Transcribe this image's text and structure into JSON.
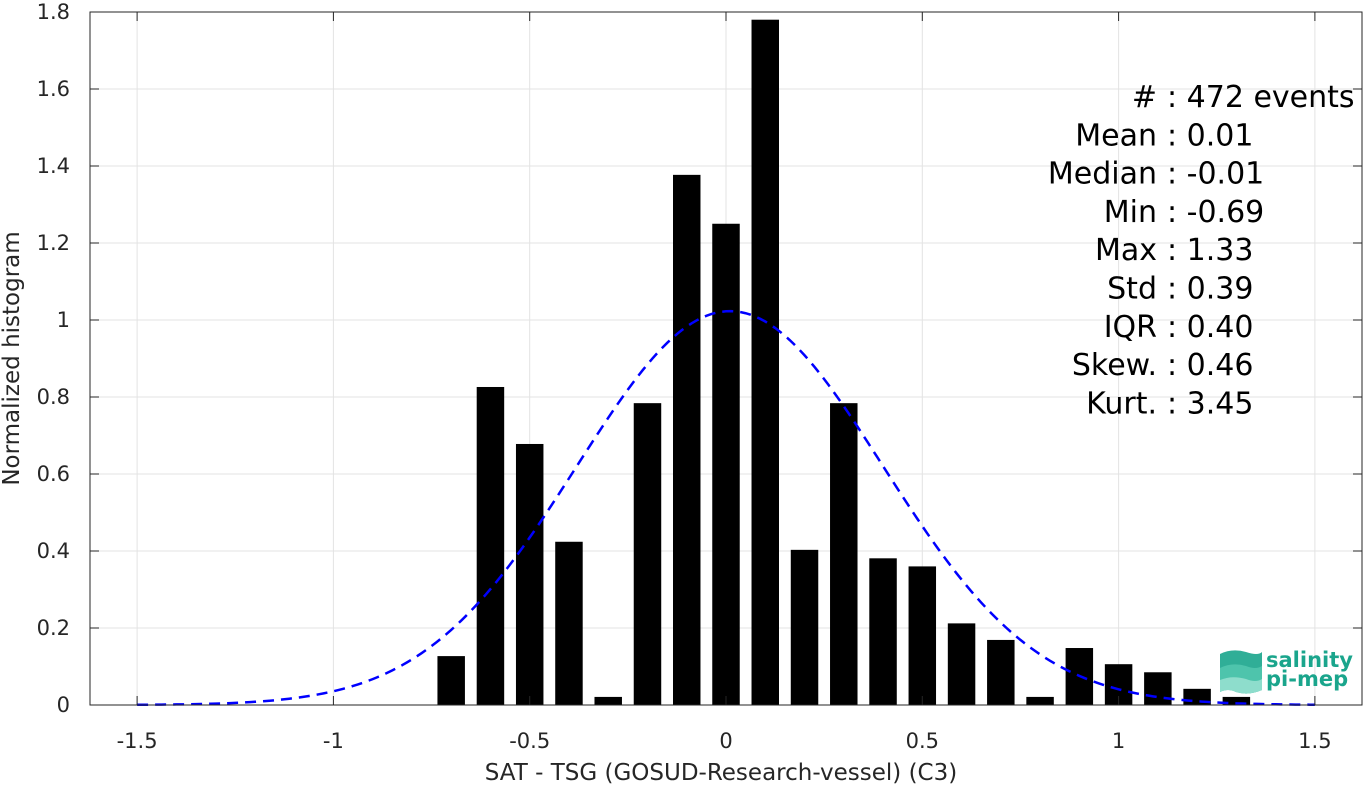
{
  "chart_data": {
    "type": "bar",
    "xlabel": "SAT - TSG (GOSUD-Research-vessel) (C3)",
    "ylabel": "Normalized histogram",
    "xlim": [
      -1.62,
      1.62
    ],
    "ylim": [
      0,
      1.8
    ],
    "xticks": [
      -1.5,
      -1,
      -0.5,
      0,
      0.5,
      1,
      1.5
    ],
    "xtick_labels": [
      "-1.5",
      "-1",
      "-0.5",
      "0",
      "0.5",
      "1",
      "1.5"
    ],
    "yticks": [
      0,
      0.2,
      0.4,
      0.6,
      0.8,
      1,
      1.2,
      1.4,
      1.6,
      1.8
    ],
    "ytick_labels": [
      "0",
      "0.2",
      "0.4",
      "0.6",
      "0.8",
      "1",
      "1.2",
      "1.4",
      "1.6",
      "1.8"
    ],
    "grid": true,
    "bin_width": 0.1,
    "bar_width": 0.07,
    "bin_centers": [
      -0.7,
      -0.6,
      -0.5,
      -0.4,
      -0.3,
      -0.2,
      -0.1,
      0.0,
      0.1,
      0.2,
      0.3,
      0.4,
      0.5,
      0.6,
      0.7,
      0.8,
      0.9,
      1.0,
      1.1,
      1.2,
      1.3
    ],
    "values": [
      0.127,
      0.826,
      0.678,
      0.424,
      0.021,
      0.784,
      1.377,
      1.25,
      1.78,
      0.403,
      0.784,
      0.381,
      0.36,
      0.212,
      0.169,
      0.021,
      0.148,
      0.106,
      0.085,
      0.042,
      0.021
    ],
    "bar_color": "#000000",
    "fit": {
      "type": "normal",
      "mean": 0.01,
      "std": 0.39,
      "color": "#0000ff",
      "style": "dashed",
      "x_range": [
        -1.5,
        1.5
      ]
    },
    "stats": [
      "#  : 472 events",
      "Mean : 0.01",
      "Median : -0.01",
      "Min : -0.69",
      "Max : 1.33",
      "Std : 0.39",
      "IQR : 0.40",
      "Skew. : 0.46",
      "Kurt. : 3.45"
    ]
  },
  "logo": {
    "line1": "salinity",
    "line2": "pi-mep",
    "color": "#1aa58c"
  }
}
